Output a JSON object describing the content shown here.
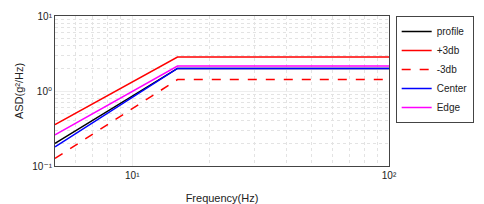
{
  "chart_data": {
    "type": "line",
    "log": true,
    "grid": true,
    "legend": "right",
    "xlabel": "Frequency(Hz)",
    "ylabel": "ASD(g²/Hz)",
    "xlim": [
      5,
      100
    ],
    "ylim": [
      0.1,
      10
    ],
    "xticks": [
      {
        "value": 10,
        "label": "10¹"
      },
      {
        "value": 100,
        "label": "10²"
      }
    ],
    "yticks": [
      {
        "value": 0.1,
        "label": "10⁻¹"
      },
      {
        "value": 1,
        "label": "10⁰"
      },
      {
        "value": 10,
        "label": "10¹"
      }
    ],
    "series": [
      {
        "name": "profile",
        "color": "black",
        "line_style": "solid",
        "x": [
          5,
          15,
          100
        ],
        "values": [
          0.2,
          2.0,
          2.0
        ]
      },
      {
        "name": "+3db",
        "color": "red",
        "line_style": "solid",
        "x": [
          5,
          15,
          100
        ],
        "values": [
          0.356,
          2.83,
          2.83
        ]
      },
      {
        "name": "-3db",
        "color": "red",
        "line_style": "dashed",
        "x": [
          5,
          15,
          100
        ],
        "values": [
          0.126,
          1.42,
          1.42
        ]
      },
      {
        "name": "Center",
        "color": "blue",
        "line_style": "solid",
        "x": [
          5,
          15,
          80,
          100
        ],
        "values": [
          0.18,
          2.0,
          2.0,
          2.0
        ]
      },
      {
        "name": "Edge",
        "color": "magenta",
        "line_style": "solid",
        "x": [
          5,
          15,
          80,
          100
        ],
        "values": [
          0.26,
          2.15,
          2.15,
          2.15
        ]
      }
    ]
  }
}
